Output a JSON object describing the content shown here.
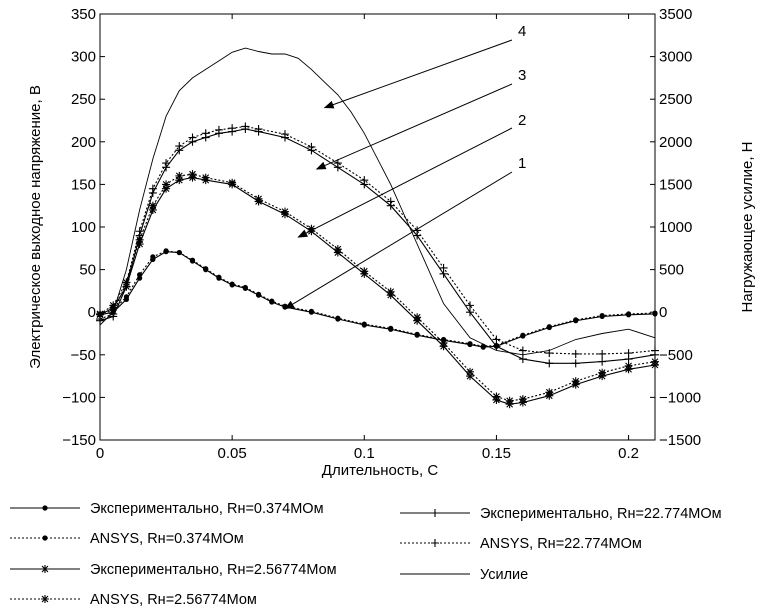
{
  "chart_data": {
    "type": "line",
    "title": "",
    "xlabel": "Длительность, С",
    "ylabel": "Электрическое выходное напряжение, В",
    "y2label": "Нагружающее усилие, Н",
    "xlim": [
      0,
      0.21
    ],
    "ylim": [
      -150,
      350
    ],
    "y2lim": [
      -1500,
      3500
    ],
    "x_ticks": [
      0,
      0.05,
      0.1,
      0.15,
      0.2
    ],
    "x_tick_labels": [
      "0",
      "0.05",
      "0.1",
      "0.15",
      "0.2"
    ],
    "y_ticks": [
      -150,
      -100,
      -50,
      0,
      50,
      100,
      150,
      200,
      250,
      300,
      350
    ],
    "y_tick_labels": [
      "−150",
      "−100",
      "−50",
      "0",
      "50",
      "100",
      "150",
      "200",
      "250",
      "300",
      "350"
    ],
    "y2_ticks": [
      -1500,
      -1000,
      -500,
      0,
      500,
      1000,
      1500,
      2000,
      2500,
      3000,
      3500
    ],
    "y2_tick_labels": [
      "−1500",
      "−1000",
      "−500",
      "0",
      "500",
      "1000",
      "1500",
      "2000",
      "2500",
      "3000",
      "3500"
    ],
    "grid": false,
    "series": [
      {
        "name": "Экспериментально, Rн=0.374МОм",
        "id": "s1",
        "axis": "left",
        "dash": false,
        "marker": "dot",
        "x": [
          0,
          0.005,
          0.01,
          0.015,
          0.02,
          0.025,
          0.03,
          0.035,
          0.04,
          0.045,
          0.05,
          0.055,
          0.06,
          0.065,
          0.07,
          0.08,
          0.09,
          0.1,
          0.11,
          0.12,
          0.13,
          0.14,
          0.145,
          0.15,
          0.16,
          0.17,
          0.18,
          0.19,
          0.2,
          0.21
        ],
        "y": [
          -3,
          0,
          15,
          40,
          62,
          71,
          70,
          60,
          50,
          40,
          32,
          28,
          20,
          12,
          6,
          0,
          -8,
          -15,
          -20,
          -27,
          -33,
          -38,
          -41,
          -40,
          -28,
          -18,
          -10,
          -5,
          -3,
          -2
        ]
      },
      {
        "name": "ANSYS, Rн=0.374МОм",
        "id": "s2",
        "axis": "left",
        "dash": true,
        "marker": "dot",
        "x": [
          0,
          0.005,
          0.01,
          0.015,
          0.02,
          0.025,
          0.03,
          0.035,
          0.04,
          0.045,
          0.05,
          0.055,
          0.06,
          0.065,
          0.07,
          0.08,
          0.09,
          0.1,
          0.11,
          0.12,
          0.13,
          0.14,
          0.145,
          0.15,
          0.16,
          0.17,
          0.18,
          0.19,
          0.2,
          0.21
        ],
        "y": [
          -2,
          2,
          18,
          44,
          65,
          72,
          70,
          61,
          51,
          41,
          33,
          29,
          21,
          13,
          7,
          1,
          -7,
          -14,
          -19,
          -26,
          -32,
          -37,
          -40,
          -39,
          -27,
          -17,
          -9,
          -4,
          -2,
          -1
        ]
      },
      {
        "name": "Экспериментально, Rн=2.56774Мом",
        "id": "s3",
        "axis": "left",
        "dash": false,
        "marker": "star",
        "x": [
          0,
          0.005,
          0.01,
          0.015,
          0.02,
          0.025,
          0.03,
          0.035,
          0.04,
          0.05,
          0.06,
          0.07,
          0.08,
          0.09,
          0.1,
          0.11,
          0.12,
          0.13,
          0.14,
          0.15,
          0.155,
          0.16,
          0.17,
          0.18,
          0.19,
          0.2,
          0.21
        ],
        "y": [
          -3,
          5,
          30,
          80,
          120,
          145,
          155,
          158,
          155,
          150,
          130,
          115,
          95,
          70,
          45,
          20,
          -10,
          -40,
          -75,
          -103,
          -108,
          -106,
          -98,
          -85,
          -75,
          -67,
          -62
        ]
      },
      {
        "name": "ANSYS, Rн=2.56774Мом",
        "id": "s4",
        "axis": "left",
        "dash": true,
        "marker": "star",
        "x": [
          0,
          0.005,
          0.01,
          0.015,
          0.02,
          0.025,
          0.03,
          0.035,
          0.04,
          0.05,
          0.06,
          0.07,
          0.08,
          0.09,
          0.1,
          0.11,
          0.12,
          0.13,
          0.14,
          0.15,
          0.155,
          0.16,
          0.17,
          0.18,
          0.19,
          0.2,
          0.21
        ],
        "y": [
          -2,
          8,
          35,
          85,
          125,
          150,
          160,
          162,
          158,
          152,
          133,
          118,
          98,
          74,
          48,
          24,
          -6,
          -36,
          -70,
          -99,
          -104,
          -102,
          -94,
          -81,
          -71,
          -63,
          -58
        ]
      },
      {
        "name": "Экспериментально, Rн=22.774МОм",
        "id": "s5",
        "axis": "left",
        "dash": false,
        "marker": "plus",
        "x": [
          0,
          0.005,
          0.01,
          0.015,
          0.02,
          0.025,
          0.03,
          0.035,
          0.04,
          0.045,
          0.05,
          0.055,
          0.06,
          0.07,
          0.08,
          0.09,
          0.1,
          0.11,
          0.12,
          0.13,
          0.14,
          0.15,
          0.16,
          0.17,
          0.18,
          0.19,
          0.2,
          0.21
        ],
        "y": [
          -10,
          -5,
          30,
          90,
          140,
          170,
          190,
          200,
          205,
          210,
          212,
          215,
          212,
          205,
          190,
          170,
          150,
          125,
          90,
          45,
          0,
          -40,
          -55,
          -60,
          -60,
          -58,
          -55,
          -50
        ]
      },
      {
        "name": "ANSYS, Rн=22.774МОм",
        "id": "s6",
        "axis": "left",
        "dash": true,
        "marker": "plus",
        "x": [
          0,
          0.005,
          0.01,
          0.015,
          0.02,
          0.025,
          0.03,
          0.035,
          0.04,
          0.045,
          0.05,
          0.055,
          0.06,
          0.07,
          0.08,
          0.09,
          0.1,
          0.11,
          0.12,
          0.13,
          0.14,
          0.15,
          0.16,
          0.17,
          0.18,
          0.19,
          0.2,
          0.21
        ],
        "y": [
          -8,
          -2,
          35,
          95,
          145,
          175,
          195,
          205,
          210,
          214,
          216,
          218,
          215,
          209,
          194,
          175,
          155,
          130,
          96,
          52,
          8,
          -32,
          -45,
          -48,
          -49,
          -49,
          -48,
          -45
        ]
      },
      {
        "name": "Усилие",
        "id": "s7",
        "axis": "right",
        "dash": false,
        "marker": "none",
        "x": [
          0,
          0.005,
          0.01,
          0.015,
          0.02,
          0.025,
          0.03,
          0.035,
          0.04,
          0.045,
          0.05,
          0.055,
          0.06,
          0.065,
          0.07,
          0.075,
          0.08,
          0.085,
          0.09,
          0.095,
          0.1,
          0.11,
          0.12,
          0.13,
          0.14,
          0.15,
          0.16,
          0.17,
          0.18,
          0.19,
          0.2,
          0.21
        ],
        "y": [
          -150,
          0,
          500,
          1200,
          1800,
          2300,
          2600,
          2750,
          2850,
          2950,
          3050,
          3100,
          3060,
          3030,
          3030,
          2980,
          2850,
          2700,
          2550,
          2350,
          2100,
          1500,
          800,
          100,
          -300,
          -450,
          -500,
          -450,
          -320,
          -250,
          -200,
          -300
        ]
      }
    ],
    "callouts": [
      {
        "label": "4",
        "target_x": 0.085,
        "target_y": 240
      },
      {
        "label": "3",
        "target_x": 0.082,
        "target_y": 168
      },
      {
        "label": "2",
        "target_x": 0.075,
        "target_y": 88
      },
      {
        "label": "1",
        "target_x": 0.07,
        "target_y": 4
      }
    ]
  }
}
